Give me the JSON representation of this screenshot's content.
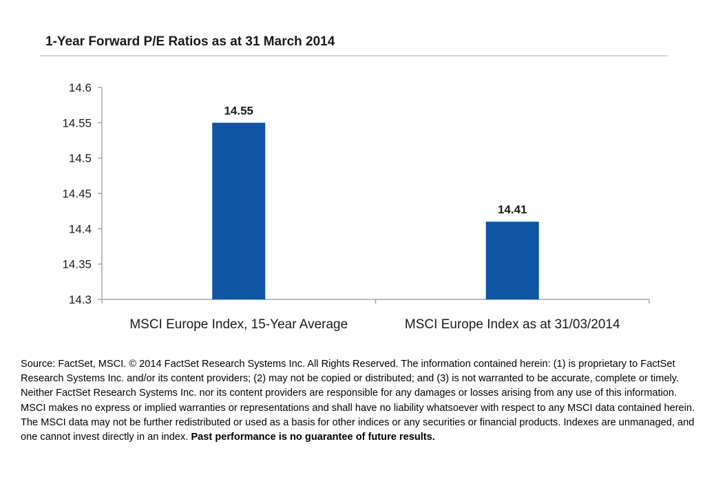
{
  "chart_data": {
    "type": "bar",
    "title": "1-Year Forward P/E Ratios as at 31 March 2014",
    "xlabel": "",
    "ylabel": "",
    "categories": [
      "MSCI Europe Index, 15-Year Average",
      "MSCI Europe Index as at 31/03/2014"
    ],
    "values": [
      14.55,
      14.41
    ],
    "data_labels": [
      "14.55",
      "14.41"
    ],
    "ylim": [
      14.3,
      14.6
    ],
    "y_ticks": [
      14.3,
      14.35,
      14.4,
      14.45,
      14.5,
      14.55,
      14.6
    ],
    "y_tick_labels": [
      "14.3",
      "14.35",
      "14.4",
      "14.45",
      "14.5",
      "14.55",
      "14.6"
    ],
    "grid": false,
    "legend": "none",
    "bar_color": "#0E56A3"
  },
  "footnote": {
    "text": "Source: FactSet, MSCI. © 2014 FactSet Research Systems Inc. All Rights Reserved. The information contained herein: (1) is proprietary to FactSet Research Systems Inc. and/or its content providers; (2) may not be copied or distributed; and (3) is not warranted to be accurate, complete or timely. Neither FactSet Research Systems Inc. nor its content providers are responsible for any damages or losses arising from any use of this information. MSCI makes no express or implied warranties or representations and shall have no liability whatsoever with respect to any MSCI data contained herein. The MSCI data may not be further redistributed or used as a basis for other indices or any securities or financial products. Indexes are unmanaged, and one cannot invest directly in an index.",
    "emphasis": "Past performance is no guarantee of future results."
  }
}
